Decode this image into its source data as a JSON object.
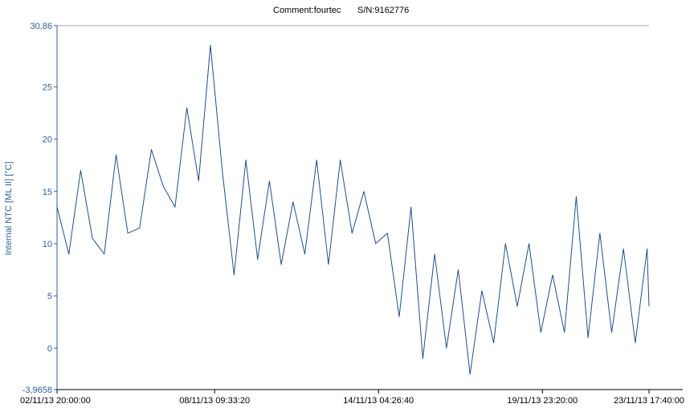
{
  "header": {
    "comment": "Comment:fourtec",
    "serial": "S/N:9162776"
  },
  "colors": {
    "series": "#1f4e8c",
    "axis_y": "#2e5f98",
    "frame": "#a0a0a0",
    "text": "#000000"
  },
  "chart_data": {
    "type": "line",
    "title": "",
    "ylabel": "Internal NTC [ML II] [°C]",
    "xlabel": "",
    "ylim": [
      -3.9658,
      30.86
    ],
    "yticks": [
      {
        "value": 30.86,
        "label": "30,86"
      },
      {
        "value": 25,
        "label": "25"
      },
      {
        "value": 20,
        "label": "20"
      },
      {
        "value": 15,
        "label": "15"
      },
      {
        "value": 10,
        "label": "10"
      },
      {
        "value": 5,
        "label": "5"
      },
      {
        "value": 0,
        "label": "0"
      },
      {
        "value": -3.9658,
        "label": "-3,9658"
      }
    ],
    "xlim": [
      "02/11/13 20:00:00",
      "23/11/13 17:40:00"
    ],
    "xticks": [
      "02/11/13 20:00:00",
      "08/11/13 09:33:20",
      "14/11/13 04:26:40",
      "19/11/13 23:20:00",
      "23/11/13 17:40:00"
    ],
    "grid": false,
    "series": [
      {
        "x": [
          "02/11/13 20:00",
          "03/11/13 06:00",
          "03/11/13 16:00",
          "04/11/13 02:00",
          "04/11/13 12:00",
          "04/11/13 22:00",
          "05/11/13 08:00",
          "05/11/13 18:00",
          "06/11/13 04:00",
          "06/11/13 14:00",
          "07/11/13 00:00",
          "07/11/13 10:00",
          "07/11/13 20:00",
          "08/11/13 06:00",
          "08/11/13 16:00",
          "09/11/13 02:00",
          "09/11/13 12:00",
          "09/11/13 22:00",
          "10/11/13 08:00",
          "10/11/13 18:00",
          "11/11/13 04:00",
          "11/11/13 14:00",
          "12/11/13 00:00",
          "12/11/13 10:00",
          "12/11/13 20:00",
          "13/11/13 06:00",
          "13/11/13 16:00",
          "14/11/13 02:00",
          "14/11/13 12:00",
          "14/11/13 22:00",
          "15/11/13 08:00",
          "15/11/13 18:00",
          "16/11/13 04:00",
          "16/11/13 14:00",
          "17/11/13 00:00",
          "17/11/13 10:00",
          "17/11/13 20:00",
          "18/11/13 06:00",
          "18/11/13 16:00",
          "19/11/13 02:00",
          "19/11/13 12:00",
          "19/11/13 22:00",
          "20/11/13 08:00",
          "20/11/13 18:00",
          "21/11/13 04:00",
          "21/11/13 14:00",
          "22/11/13 00:00",
          "22/11/13 10:00",
          "22/11/13 20:00",
          "23/11/13 06:00",
          "23/11/13 16:00",
          "23/11/13 17:40"
        ],
        "y": [
          13.5,
          9.0,
          17.0,
          10.5,
          9.0,
          18.5,
          11.0,
          11.5,
          19.0,
          15.5,
          13.5,
          23.0,
          16.0,
          29.0,
          17.0,
          7.0,
          18.0,
          8.5,
          16.0,
          8.0,
          14.0,
          9.0,
          18.0,
          8.0,
          18.0,
          11.0,
          15.0,
          10.0,
          11.0,
          3.0,
          13.5,
          -1.0,
          9.0,
          0.0,
          7.5,
          -2.5,
          5.5,
          0.5,
          10.0,
          4.0,
          10.0,
          1.5,
          7.0,
          1.5,
          14.5,
          1.0,
          11.0,
          1.5,
          9.5,
          0.5,
          9.5,
          4.0
        ]
      }
    ]
  }
}
